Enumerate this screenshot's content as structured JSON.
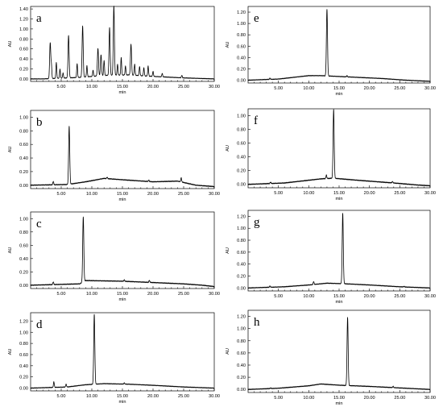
{
  "figure": {
    "background": "#ffffff",
    "line_color": "#000000"
  },
  "chart_data": [
    {
      "type": "line",
      "panel": "a",
      "xlabel": "min",
      "ylabel": "AU",
      "xlim": [
        0,
        30
      ],
      "ylim": [
        -0.05,
        1.45
      ],
      "xticks": [
        "5.00",
        "10.00",
        "15.00",
        "20.00",
        "25.00",
        "30.00"
      ],
      "yticks": [
        "0.00",
        "0.20",
        "0.40",
        "0.60",
        "0.80",
        "1.00",
        "1.20",
        "1.40"
      ],
      "baseline": [
        [
          0,
          0.0
        ],
        [
          2,
          0.0
        ],
        [
          8,
          0.03
        ],
        [
          12,
          0.07
        ],
        [
          16,
          0.08
        ],
        [
          20,
          0.05
        ],
        [
          25,
          0.02
        ],
        [
          30,
          0.0
        ]
      ],
      "peaks": [
        {
          "rt": 3.2,
          "height": 0.72
        },
        {
          "rt": 3.4,
          "height": 0.25
        },
        {
          "rt": 4.2,
          "height": 0.32
        },
        {
          "rt": 4.8,
          "height": 0.18
        },
        {
          "rt": 5.3,
          "height": 0.1
        },
        {
          "rt": 6.2,
          "height": 0.85
        },
        {
          "rt": 7.6,
          "height": 0.28
        },
        {
          "rt": 8.5,
          "height": 1.02
        },
        {
          "rt": 9.2,
          "height": 0.22
        },
        {
          "rt": 10.2,
          "height": 0.12
        },
        {
          "rt": 11.0,
          "height": 0.55
        },
        {
          "rt": 11.5,
          "height": 0.42
        },
        {
          "rt": 12.0,
          "height": 0.3
        },
        {
          "rt": 12.9,
          "height": 0.95
        },
        {
          "rt": 13.6,
          "height": 1.38
        },
        {
          "rt": 14.2,
          "height": 0.22
        },
        {
          "rt": 14.8,
          "height": 0.35
        },
        {
          "rt": 15.5,
          "height": 0.18
        },
        {
          "rt": 16.4,
          "height": 0.62
        },
        {
          "rt": 17.0,
          "height": 0.22
        },
        {
          "rt": 17.8,
          "height": 0.18
        },
        {
          "rt": 18.5,
          "height": 0.16
        },
        {
          "rt": 19.2,
          "height": 0.2
        },
        {
          "rt": 20.0,
          "height": 0.1
        },
        {
          "rt": 21.5,
          "height": 0.07
        },
        {
          "rt": 24.7,
          "height": 0.05
        }
      ]
    },
    {
      "type": "line",
      "panel": "b",
      "xlabel": "min",
      "ylabel": "AU",
      "xlim": [
        0,
        30
      ],
      "ylim": [
        -0.05,
        1.1
      ],
      "xticks": [
        "5.00",
        "10.00",
        "15.00",
        "20.00",
        "25.00",
        "30.00"
      ],
      "yticks": [
        "0.00",
        "0.20",
        "0.40",
        "0.60",
        "0.80",
        "1.00"
      ],
      "baseline": [
        [
          0,
          0.0
        ],
        [
          6,
          0.01
        ],
        [
          9,
          0.05
        ],
        [
          12,
          0.1
        ],
        [
          15,
          0.08
        ],
        [
          20,
          0.05
        ],
        [
          24,
          0.06
        ],
        [
          27,
          0.0
        ],
        [
          30,
          -0.02
        ]
      ],
      "peaks": [
        {
          "rt": 3.7,
          "height": 0.05
        },
        {
          "rt": 6.3,
          "height": 0.85
        },
        {
          "rt": 12.5,
          "height": 0.02
        },
        {
          "rt": 19.3,
          "height": 0.02
        },
        {
          "rt": 24.6,
          "height": 0.06
        }
      ]
    },
    {
      "type": "line",
      "panel": "c",
      "xlabel": "min",
      "ylabel": "AU",
      "xlim": [
        0,
        30
      ],
      "ylim": [
        -0.05,
        1.1
      ],
      "xticks": [
        "5.00",
        "10.00",
        "15.00",
        "20.00",
        "25.00",
        "30.00"
      ],
      "yticks": [
        "0.00",
        "0.20",
        "0.40",
        "0.60",
        "0.80",
        "1.00"
      ],
      "baseline": [
        [
          0,
          0.0
        ],
        [
          8,
          0.02
        ],
        [
          9,
          0.07
        ],
        [
          15,
          0.06
        ],
        [
          20,
          0.04
        ],
        [
          25,
          0.02
        ],
        [
          28,
          0.0
        ],
        [
          30,
          -0.02
        ]
      ],
      "peaks": [
        {
          "rt": 3.7,
          "height": 0.04
        },
        {
          "rt": 8.6,
          "height": 0.98
        },
        {
          "rt": 15.3,
          "height": 0.02
        },
        {
          "rt": 19.4,
          "height": 0.03
        }
      ]
    },
    {
      "type": "line",
      "panel": "d",
      "xlabel": "min",
      "ylabel": "AU",
      "xlim": [
        0,
        30
      ],
      "ylim": [
        -0.05,
        1.35
      ],
      "xticks": [
        "5.00",
        "10.00",
        "15.00",
        "20.00",
        "25.00",
        "30.00"
      ],
      "yticks": [
        "0.00",
        "0.20",
        "0.40",
        "0.60",
        "0.80",
        "1.00",
        "1.20"
      ],
      "baseline": [
        [
          0,
          0.0
        ],
        [
          6,
          0.02
        ],
        [
          9,
          0.06
        ],
        [
          12,
          0.08
        ],
        [
          16,
          0.07
        ],
        [
          20,
          0.05
        ],
        [
          25,
          0.02
        ],
        [
          30,
          0.0
        ]
      ],
      "peaks": [
        {
          "rt": 3.8,
          "height": 0.1
        },
        {
          "rt": 5.8,
          "height": 0.05
        },
        {
          "rt": 10.4,
          "height": 1.25
        },
        {
          "rt": 15.3,
          "height": 0.02
        }
      ]
    },
    {
      "type": "line",
      "panel": "e",
      "xlabel": "min",
      "ylabel": "AU",
      "xlim": [
        0,
        30
      ],
      "ylim": [
        -0.05,
        1.3
      ],
      "xticks": [
        "5.00",
        "10.00",
        "15.00",
        "20.00",
        "25.00",
        "30.00"
      ],
      "yticks": [
        "0.00",
        "0.20",
        "0.40",
        "0.60",
        "0.80",
        "1.00",
        "1.20"
      ],
      "baseline": [
        [
          0,
          0.0
        ],
        [
          5,
          0.02
        ],
        [
          10,
          0.08
        ],
        [
          12,
          0.08
        ],
        [
          16,
          0.06
        ],
        [
          22,
          0.03
        ],
        [
          26,
          0.0
        ],
        [
          30,
          -0.02
        ]
      ],
      "peaks": [
        {
          "rt": 3.6,
          "height": 0.02
        },
        {
          "rt": 13.0,
          "height": 1.18
        },
        {
          "rt": 16.3,
          "height": 0.02
        }
      ]
    },
    {
      "type": "line",
      "panel": "f",
      "xlabel": "min",
      "ylabel": "AU",
      "xlim": [
        0,
        30
      ],
      "ylim": [
        -0.05,
        1.1
      ],
      "xticks": [
        "5.00",
        "10.00",
        "15.00",
        "20.00",
        "25.00",
        "30.00"
      ],
      "yticks": [
        "0.00",
        "0.20",
        "0.40",
        "0.60",
        "0.80",
        "1.00"
      ],
      "baseline": [
        [
          0,
          0.0
        ],
        [
          6,
          0.02
        ],
        [
          12,
          0.08
        ],
        [
          14,
          0.09
        ],
        [
          18,
          0.06
        ],
        [
          24,
          0.02
        ],
        [
          28,
          -0.01
        ],
        [
          30,
          -0.02
        ]
      ],
      "peaks": [
        {
          "rt": 3.7,
          "height": 0.02
        },
        {
          "rt": 12.9,
          "height": 0.05
        },
        {
          "rt": 14.1,
          "height": 1.0
        },
        {
          "rt": 23.8,
          "height": 0.02
        }
      ]
    },
    {
      "type": "line",
      "panel": "g",
      "xlabel": "min",
      "ylabel": "AU",
      "xlim": [
        0,
        30
      ],
      "ylim": [
        -0.05,
        1.3
      ],
      "xticks": [
        "5.00",
        "10.00",
        "15.00",
        "20.00",
        "25.00",
        "30.00"
      ],
      "yticks": [
        "0.00",
        "0.20",
        "0.40",
        "0.60",
        "0.80",
        "1.00",
        "1.20"
      ],
      "baseline": [
        [
          0,
          0.0
        ],
        [
          6,
          0.02
        ],
        [
          10,
          0.05
        ],
        [
          13,
          0.08
        ],
        [
          16,
          0.07
        ],
        [
          20,
          0.05
        ],
        [
          25,
          0.02
        ],
        [
          30,
          0.0
        ]
      ],
      "peaks": [
        {
          "rt": 3.6,
          "height": 0.02
        },
        {
          "rt": 10.8,
          "height": 0.05
        },
        {
          "rt": 15.6,
          "height": 1.18
        },
        {
          "rt": 25.7,
          "height": 0.01
        }
      ]
    },
    {
      "type": "line",
      "panel": "h",
      "xlabel": "min",
      "ylabel": "AU",
      "xlim": [
        0,
        30
      ],
      "ylim": [
        -0.05,
        1.3
      ],
      "xticks": [
        "5.00",
        "10.00",
        "15.00",
        "20.00",
        "25.00",
        "30.00"
      ],
      "yticks": [
        "0.00",
        "0.20",
        "0.40",
        "0.60",
        "0.80",
        "1.00",
        "1.20"
      ],
      "baseline": [
        [
          0,
          0.0
        ],
        [
          5,
          0.02
        ],
        [
          10,
          0.06
        ],
        [
          12,
          0.09
        ],
        [
          15,
          0.07
        ],
        [
          20,
          0.05
        ],
        [
          24,
          0.03
        ],
        [
          30,
          0.0
        ]
      ],
      "peaks": [
        {
          "rt": 3.7,
          "height": 0.01
        },
        {
          "rt": 16.4,
          "height": 1.12
        },
        {
          "rt": 23.9,
          "height": 0.02
        }
      ]
    }
  ]
}
